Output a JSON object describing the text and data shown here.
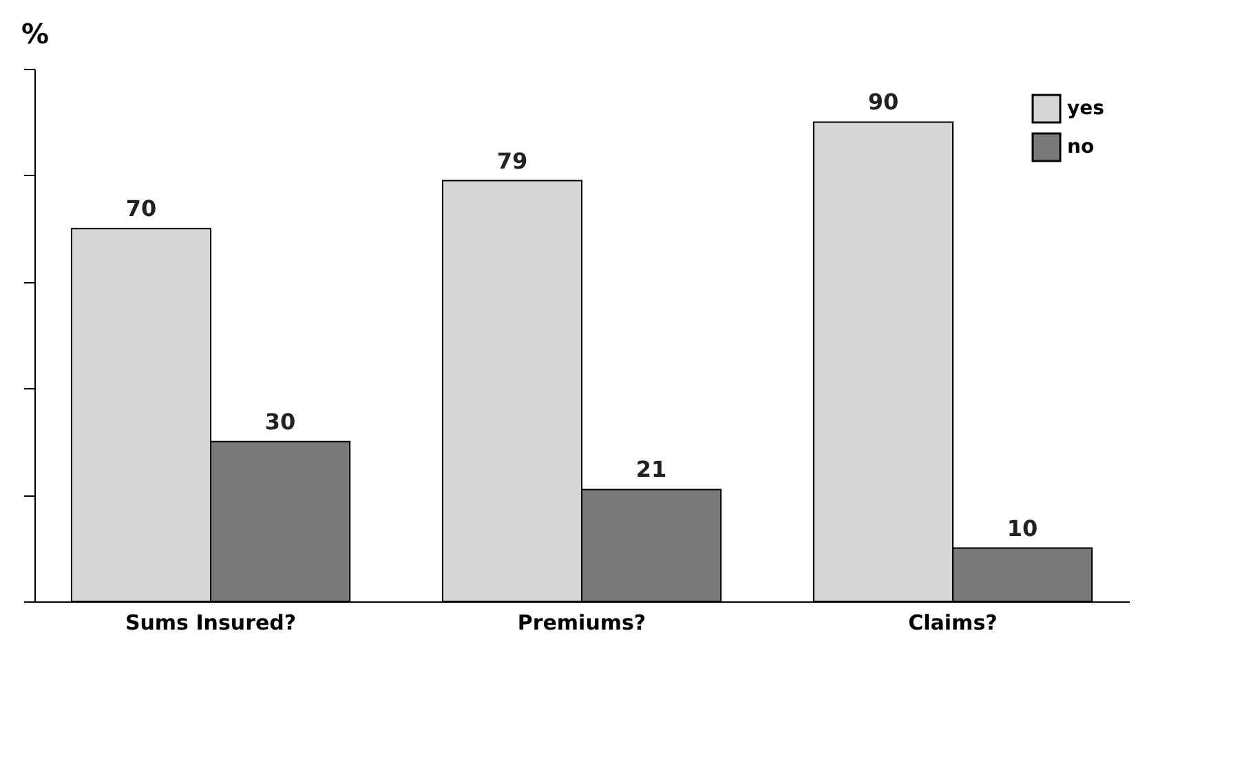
{
  "chart_data": {
    "type": "bar",
    "ylabel": "%",
    "categories": [
      "Sums Insured?",
      "Premiums?",
      "Claims?"
    ],
    "series": [
      {
        "name": "yes",
        "color": "#d6d6d6",
        "values": [
          70,
          79,
          90
        ]
      },
      {
        "name": "no",
        "color": "#7a7a7a",
        "values": [
          30,
          21,
          10
        ]
      }
    ],
    "ylim": [
      0,
      100
    ],
    "yticks": [
      {
        "value": 0,
        "label": null
      },
      {
        "value": 20,
        "label": null
      },
      {
        "value": 40,
        "label": null
      },
      {
        "value": 60,
        "label": null
      },
      {
        "value": 80,
        "label": null
      },
      {
        "value": 100,
        "label": null
      }
    ],
    "data_labels": true,
    "legend": "top right",
    "grid": false
  }
}
